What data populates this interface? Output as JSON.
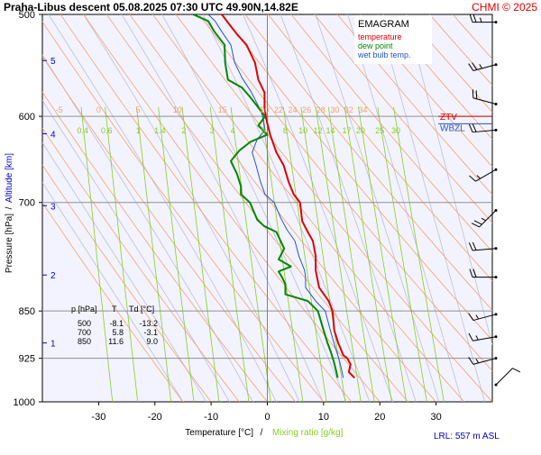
{
  "header": {
    "title": "Praha-Libus   descent   05.08.2025 07:30 UTC  49.90N,14.82E",
    "credit": "CHMI © 2025"
  },
  "colors": {
    "temperature": "#e00000",
    "dew_point": "#008800",
    "wet_bulb": "#2255cc",
    "mixing_ratio": "#88cc22",
    "dry_adiabat": "#f2a366",
    "moist_adiabat": "#bdbdd2",
    "isobar": "#909090",
    "plot_bg": "#f3f3ff",
    "altitude": "#0000cc",
    "credit": "#dd0000"
  },
  "chart_data": {
    "type": "line",
    "title": "EMAGRAM",
    "legend": {
      "position": "top-right",
      "entries": [
        {
          "key": "temperature",
          "label": "temperature"
        },
        {
          "key": "dew_point",
          "label": "dew point"
        },
        {
          "key": "wet_bulb",
          "label": "wet bulb temp."
        }
      ]
    },
    "xlabel_temperature": "Temperature [°C]",
    "xlabel_separator": "/",
    "xlabel_mixing": "Mixing ratio [g/kg]",
    "ylabel_pressure": "Pressure [hPa]",
    "ylabel_separator": "/",
    "ylabel_altitude": "Altitude [km]",
    "xlim": [
      -40,
      40
    ],
    "ylim": [
      500,
      1000
    ],
    "y_scale": "log",
    "x_ticks": [
      -30,
      -20,
      -10,
      0,
      10,
      20,
      30
    ],
    "pressure_ticks": [
      500,
      600,
      700,
      850,
      925,
      1000
    ],
    "altitude_ticks": [
      {
        "km": "1",
        "p": 900
      },
      {
        "km": "2",
        "p": 797
      },
      {
        "km": "3",
        "p": 704
      },
      {
        "km": "4",
        "p": 619
      },
      {
        "km": "5",
        "p": 543
      }
    ],
    "dry_adiabat_labels": [
      "-5",
      "0",
      "5",
      "10",
      "15",
      "20",
      "22",
      "24",
      "26",
      "28",
      "30",
      "32",
      "34"
    ],
    "mixing_ratio_lines": [
      {
        "label": "0.4",
        "w": 0.4
      },
      {
        "label": "0.6",
        "w": 0.6
      },
      {
        "label": "1",
        "w": 1
      },
      {
        "label": "1.4",
        "w": 1.4
      },
      {
        "label": "2",
        "w": 2
      },
      {
        "label": "3",
        "w": 3
      },
      {
        "label": "4",
        "w": 4
      },
      {
        "label": "6",
        "w": 6
      },
      {
        "label": "8",
        "w": 8
      },
      {
        "label": "10",
        "w": 10
      },
      {
        "label": "12",
        "w": 12
      },
      {
        "label": "14",
        "w": 14
      },
      {
        "label": "17",
        "w": 17
      },
      {
        "label": "20",
        "w": 20
      },
      {
        "label": "25",
        "w": 25
      },
      {
        "label": "30",
        "w": 30
      }
    ],
    "levels": [
      {
        "label": "ZTV",
        "p": 600
      },
      {
        "label": "WBZL",
        "p": 608
      }
    ],
    "series": [
      {
        "name": "temperature",
        "color_key": "temperature",
        "points": [
          [
            15.5,
            958
          ],
          [
            14.5,
            948
          ],
          [
            14.8,
            935
          ],
          [
            14.2,
            925
          ],
          [
            13.5,
            920
          ],
          [
            12.6,
            900
          ],
          [
            11.9,
            880
          ],
          [
            11.6,
            850
          ],
          [
            10.9,
            835
          ],
          [
            9.2,
            815
          ],
          [
            8.6,
            790
          ],
          [
            8.6,
            770
          ],
          [
            8.1,
            750
          ],
          [
            7.2,
            738
          ],
          [
            6.2,
            724
          ],
          [
            5.8,
            700
          ],
          [
            4.7,
            690
          ],
          [
            3.8,
            675
          ],
          [
            2.9,
            655
          ],
          [
            1.6,
            640
          ],
          [
            0.5,
            620
          ],
          [
            -0.2,
            603
          ],
          [
            -0.5,
            590
          ],
          [
            -0.5,
            575
          ],
          [
            -1.6,
            562
          ],
          [
            -2.2,
            545
          ],
          [
            -3.7,
            528
          ],
          [
            -5.4,
            518
          ],
          [
            -6.6,
            510
          ],
          [
            -8.1,
            500
          ]
        ]
      },
      {
        "name": "dew point",
        "color_key": "dew_point",
        "points": [
          [
            12.5,
            958
          ],
          [
            12.2,
            945
          ],
          [
            11.8,
            930
          ],
          [
            11.3,
            915
          ],
          [
            10.7,
            900
          ],
          [
            10.0,
            880
          ],
          [
            9.0,
            850
          ],
          [
            7.2,
            835
          ],
          [
            3.2,
            825
          ],
          [
            3.2,
            810
          ],
          [
            2.6,
            800
          ],
          [
            2.0,
            792
          ],
          [
            4.2,
            785
          ],
          [
            2.0,
            775
          ],
          [
            3.0,
            760
          ],
          [
            1.6,
            738
          ],
          [
            -0.6,
            730
          ],
          [
            -1.8,
            722
          ],
          [
            -3.1,
            700
          ],
          [
            -4.7,
            690
          ],
          [
            -4.7,
            680
          ],
          [
            -5.4,
            665
          ],
          [
            -6.5,
            650
          ],
          [
            -5.0,
            638
          ],
          [
            -3.0,
            628
          ],
          [
            0.0,
            620
          ],
          [
            -1.6,
            610
          ],
          [
            -0.4,
            600
          ],
          [
            -3.0,
            580
          ],
          [
            -4.5,
            570
          ],
          [
            -7.0,
            562
          ],
          [
            -7.5,
            545
          ],
          [
            -7.6,
            528
          ],
          [
            -9.5,
            515
          ],
          [
            -10.5,
            506
          ],
          [
            -13.2,
            500
          ]
        ]
      },
      {
        "name": "wet bulb temp.",
        "color_key": "wet_bulb",
        "points": [
          [
            13.5,
            958
          ],
          [
            13.1,
            940
          ],
          [
            12.7,
            925
          ],
          [
            12.0,
            905
          ],
          [
            11.2,
            880
          ],
          [
            10.3,
            850
          ],
          [
            8.6,
            835
          ],
          [
            6.8,
            815
          ],
          [
            6.8,
            800
          ],
          [
            6.6,
            790
          ],
          [
            5.6,
            770
          ],
          [
            4.9,
            750
          ],
          [
            3.5,
            735
          ],
          [
            2.4,
            720
          ],
          [
            1.2,
            700
          ],
          [
            -0.4,
            690
          ],
          [
            -1.2,
            675
          ],
          [
            -2.0,
            655
          ],
          [
            -2.7,
            640
          ],
          [
            -1.8,
            625
          ],
          [
            -0.4,
            615
          ],
          [
            -0.8,
            600
          ],
          [
            -1.5,
            590
          ],
          [
            -2.8,
            575
          ],
          [
            -4.5,
            560
          ],
          [
            -5.8,
            545
          ],
          [
            -6.5,
            528
          ],
          [
            -8.2,
            515
          ],
          [
            -9.3,
            506
          ],
          [
            -10.5,
            500
          ]
        ]
      }
    ],
    "table": {
      "headers": [
        "p [hPa]",
        "T",
        "Td [°C]"
      ],
      "rows": [
        [
          "500",
          "-8.1",
          "-13.2"
        ],
        [
          "700",
          "5.8",
          "-3.1"
        ],
        [
          "850",
          "11.6",
          "9.0"
        ]
      ]
    },
    "wind_barbs": [
      {
        "p": 507,
        "dir": 270,
        "speed": 25
      },
      {
        "p": 547,
        "dir": 255,
        "speed": 25
      },
      {
        "p": 587,
        "dir": 285,
        "speed": 20
      },
      {
        "p": 615,
        "dir": 265,
        "speed": 20
      },
      {
        "p": 660,
        "dir": 240,
        "speed": 15
      },
      {
        "p": 710,
        "dir": 225,
        "speed": 25
      },
      {
        "p": 760,
        "dir": 265,
        "speed": 20
      },
      {
        "p": 800,
        "dir": 270,
        "speed": 20
      },
      {
        "p": 855,
        "dir": 255,
        "speed": 15
      },
      {
        "p": 890,
        "dir": 260,
        "speed": 15
      },
      {
        "p": 925,
        "dir": 255,
        "speed": 15
      },
      {
        "p": 970,
        "dir": 45,
        "speed": 10
      }
    ],
    "footer_note": "LRL: 557 m ASL"
  }
}
